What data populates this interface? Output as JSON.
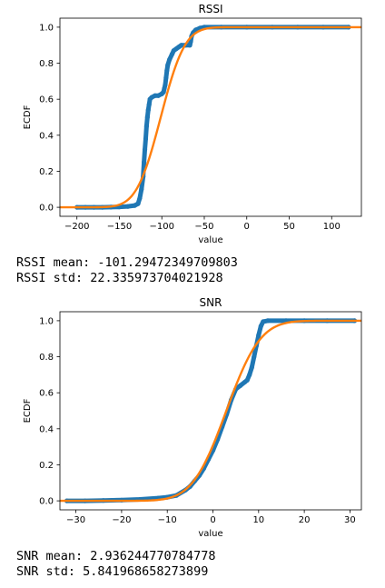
{
  "chart_data": [
    {
      "type": "scatter",
      "title": "RSSI",
      "xlabel": "value",
      "ylabel": "ECDF",
      "xlim": [
        -220,
        135
      ],
      "ylim": [
        -0.05,
        1.05
      ],
      "xticks": [
        -200,
        -150,
        -100,
        -50,
        0,
        50,
        100
      ],
      "yticks": [
        0.0,
        0.2,
        0.4,
        0.6,
        0.8,
        1.0
      ],
      "grid": false,
      "series": [
        {
          "kind": "empirical",
          "color": "#1f77b4",
          "points": [
            [
              -200,
              0.0
            ],
            [
              -190,
              0.0
            ],
            [
              -180,
              0.0
            ],
            [
              -170,
              0.0
            ],
            [
              -160,
              0.001
            ],
            [
              -150,
              0.002
            ],
            [
              -140,
              0.005
            ],
            [
              -132,
              0.01
            ],
            [
              -128,
              0.02
            ],
            [
              -126,
              0.05
            ],
            [
              -124,
              0.1
            ],
            [
              -122,
              0.17
            ],
            [
              -121,
              0.25
            ],
            [
              -120,
              0.32
            ],
            [
              -119,
              0.38
            ],
            [
              -118,
              0.45
            ],
            [
              -117,
              0.5
            ],
            [
              -116,
              0.54
            ],
            [
              -115,
              0.57
            ],
            [
              -114,
              0.6
            ],
            [
              -112,
              0.61
            ],
            [
              -108,
              0.62
            ],
            [
              -104,
              0.62
            ],
            [
              -100,
              0.63
            ],
            [
              -98,
              0.64
            ],
            [
              -97,
              0.66
            ],
            [
              -96,
              0.68
            ],
            [
              -95,
              0.72
            ],
            [
              -94,
              0.76
            ],
            [
              -93,
              0.79
            ],
            [
              -91,
              0.82
            ],
            [
              -88,
              0.85
            ],
            [
              -86,
              0.87
            ],
            [
              -83,
              0.88
            ],
            [
              -80,
              0.89
            ],
            [
              -77,
              0.9
            ],
            [
              -72,
              0.9
            ],
            [
              -67,
              0.9
            ],
            [
              -66,
              0.92
            ],
            [
              -65,
              0.95
            ],
            [
              -63,
              0.97
            ],
            [
              -60,
              0.985
            ],
            [
              -55,
              0.995
            ],
            [
              -50,
              1.0
            ],
            [
              -30,
              1.0
            ],
            [
              0,
              1.0
            ],
            [
              30,
              1.0
            ],
            [
              60,
              1.0
            ],
            [
              90,
              1.0
            ],
            [
              120,
              1.0
            ]
          ]
        },
        {
          "kind": "normal-fit",
          "color": "#ff7f0e",
          "mean": -101.29472349709803,
          "std": 22.335973704021928
        }
      ]
    },
    {
      "type": "scatter",
      "title": "SNR",
      "xlabel": "value",
      "ylabel": "ECDF",
      "xlim": [
        -33.5,
        32.5
      ],
      "ylim": [
        -0.05,
        1.05
      ],
      "xticks": [
        -30,
        -20,
        -10,
        0,
        10,
        20,
        30
      ],
      "yticks": [
        0.0,
        0.2,
        0.4,
        0.6,
        0.8,
        1.0
      ],
      "grid": false,
      "series": [
        {
          "kind": "empirical",
          "color": "#1f77b4",
          "points": [
            [
              -32,
              0.0
            ],
            [
              -28,
              0.0
            ],
            [
              -24,
              0.002
            ],
            [
              -20,
              0.004
            ],
            [
              -16,
              0.008
            ],
            [
              -12,
              0.015
            ],
            [
              -10,
              0.02
            ],
            [
              -8,
              0.03
            ],
            [
              -6,
              0.06
            ],
            [
              -5,
              0.08
            ],
            [
              -4,
              0.11
            ],
            [
              -3,
              0.14
            ],
            [
              -2,
              0.18
            ],
            [
              -1,
              0.23
            ],
            [
              0,
              0.28
            ],
            [
              1,
              0.34
            ],
            [
              2,
              0.41
            ],
            [
              3,
              0.48
            ],
            [
              4,
              0.56
            ],
            [
              5,
              0.62
            ],
            [
              6,
              0.64
            ],
            [
              7,
              0.66
            ],
            [
              7.5,
              0.67
            ],
            [
              8,
              0.7
            ],
            [
              8.5,
              0.74
            ],
            [
              9,
              0.8
            ],
            [
              9.5,
              0.86
            ],
            [
              10,
              0.92
            ],
            [
              10.5,
              0.97
            ],
            [
              11,
              0.995
            ],
            [
              12,
              1.0
            ],
            [
              16,
              1.0
            ],
            [
              20,
              1.0
            ],
            [
              25,
              1.0
            ],
            [
              31,
              1.0
            ]
          ]
        },
        {
          "kind": "normal-fit",
          "color": "#ff7f0e",
          "mean": 2.936244770784778,
          "std": 5.841968658273899
        }
      ]
    }
  ],
  "stats": {
    "rssi_mean": "RSSI mean: -101.29472349709803",
    "rssi_std": "RSSI std: 22.335973704021928",
    "snr_mean": "SNR mean: 2.936244770784778",
    "snr_std": "SNR std: 5.841968658273899"
  }
}
